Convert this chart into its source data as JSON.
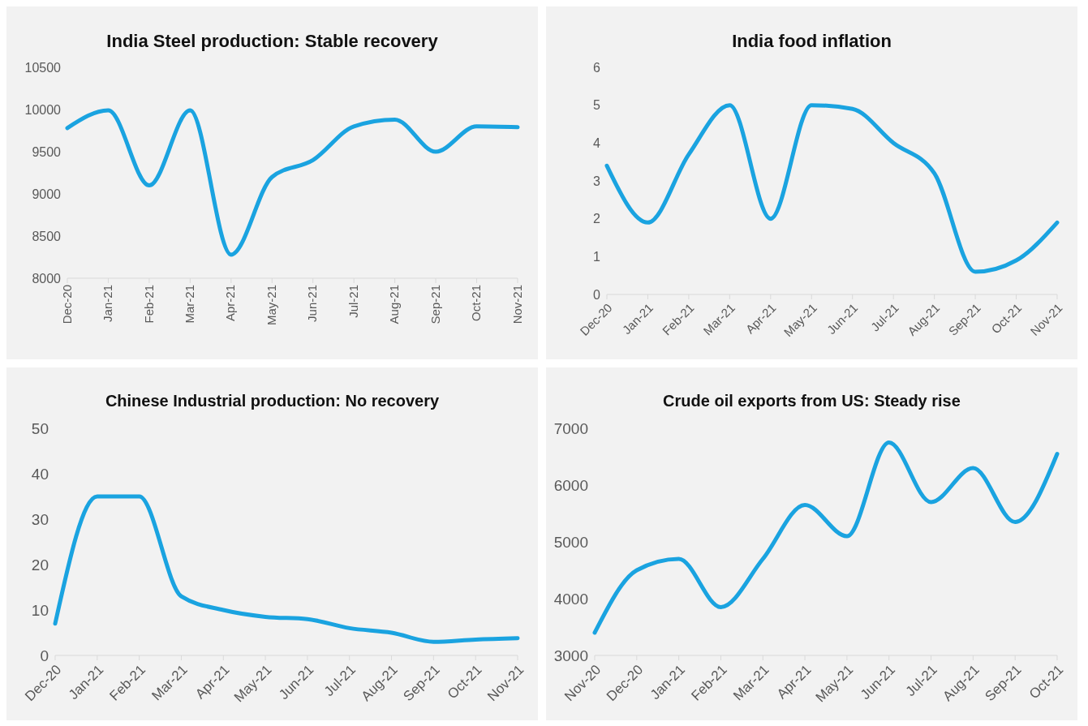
{
  "chart_data": [
    {
      "type": "line",
      "title": "India Steel production: Stable recovery",
      "categories": [
        "Dec-20",
        "Jan-21",
        "Feb-21",
        "Mar-21",
        "Apr-21",
        "May-21",
        "Jun-21",
        "Jul-21",
        "Aug-21",
        "Sep-21",
        "Oct-21",
        "Nov-21"
      ],
      "series": [
        {
          "color": "#1aa3e0",
          "values": [
            9780,
            9990,
            9100,
            9990,
            8280,
            9200,
            9400,
            9800,
            9880,
            9500,
            9800,
            9790
          ]
        }
      ],
      "ylim": [
        8000,
        10500
      ],
      "yticks": [
        8000,
        8500,
        9000,
        9500,
        10000,
        10500
      ],
      "grid": false,
      "legend": false,
      "marker": "none",
      "line_style": "solid"
    },
    {
      "type": "line",
      "title": "India food inflation",
      "categories": [
        "Dec-20",
        "Jan-21",
        "Feb-21",
        "Mar-21",
        "Apr-21",
        "May-21",
        "Jun-21",
        "Jul-21",
        "Aug-21",
        "Sep-21",
        "Oct-21",
        "Nov-21"
      ],
      "series": [
        {
          "color": "#1aa3e0",
          "values": [
            3.4,
            1.9,
            3.7,
            5.0,
            2.0,
            5.0,
            4.9,
            4.0,
            3.2,
            0.6,
            0.9,
            1.9
          ]
        }
      ],
      "ylim": [
        0,
        6
      ],
      "yticks": [
        0,
        1,
        2,
        3,
        4,
        5,
        6
      ],
      "grid": false,
      "legend": false,
      "marker": "none",
      "line_style": "solid"
    },
    {
      "type": "line",
      "title": "Chinese Industrial production: No recovery",
      "categories": [
        "Dec-20",
        "Jan-21",
        "Feb-21",
        "Mar-21",
        "Apr-21",
        "May-21",
        "Jun-21",
        "Jul-21",
        "Aug-21",
        "Sep-21",
        "Oct-21",
        "Nov-21"
      ],
      "series": [
        {
          "color": "#1aa3e0",
          "values": [
            7,
            35,
            35,
            13,
            10,
            8.5,
            8,
            6,
            5,
            3,
            3.5,
            3.8
          ]
        }
      ],
      "ylim": [
        0,
        50
      ],
      "yticks": [
        0,
        10,
        20,
        30,
        40,
        50
      ],
      "grid": false,
      "legend": false,
      "marker": "none",
      "line_style": "solid"
    },
    {
      "type": "line",
      "title": "Crude oil exports from US: Steady rise",
      "categories": [
        "Nov-20",
        "Dec-20",
        "Jan-21",
        "Feb-21",
        "Mar-21",
        "Apr-21",
        "May-21",
        "Jun-21",
        "Jul-21",
        "Aug-21",
        "Sep-21",
        "Oct-21"
      ],
      "series": [
        {
          "color": "#1aa3e0",
          "values": [
            3400,
            4500,
            4700,
            3850,
            4700,
            5650,
            5100,
            6750,
            5700,
            6300,
            5350,
            6550
          ]
        }
      ],
      "ylim": [
        3000,
        7000
      ],
      "yticks": [
        3000,
        4000,
        5000,
        6000,
        7000
      ],
      "grid": false,
      "legend": false,
      "marker": "none",
      "line_style": "solid"
    }
  ]
}
